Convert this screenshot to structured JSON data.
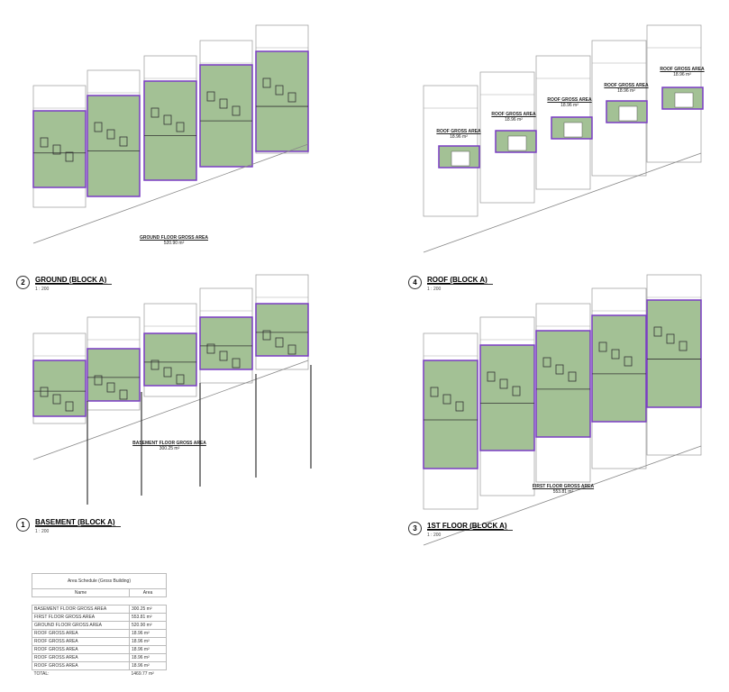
{
  "colors": {
    "floor_fill": "#a3c195",
    "area_outline": "#7a3cc4",
    "linework": "#555555"
  },
  "plans": [
    {
      "key": "ground",
      "number": "2",
      "title": "GROUND (BLOCK A)",
      "scale": "1 : 200",
      "area_label": "GROUND FLOOR GROSS AREA",
      "area_value": "520.90 m²"
    },
    {
      "key": "roof",
      "number": "4",
      "title": "ROOF (BLOCK A)",
      "scale": "1 : 200",
      "unit_label": "ROOF GROSS AREA",
      "unit_value": "18.96 m²"
    },
    {
      "key": "basement",
      "number": "1",
      "title": "BASEMENT  (BLOCK A)",
      "scale": "1 : 200",
      "area_label": "BASEMENT FLOOR GROSS AREA",
      "area_value": "300.25 m²"
    },
    {
      "key": "first",
      "number": "3",
      "title": "1ST FLOOR  (BLOCK A)",
      "scale": "1 : 200",
      "area_label": "FIRST FLOOR GROSS AREA",
      "area_value": "553.81 m²"
    }
  ],
  "schedule": {
    "title": "Area Schedule (Gross Building)",
    "headers": [
      "Name",
      "Area"
    ],
    "rows": [
      [
        "BASEMENT FLOOR GROSS AREA",
        "300.25 m²"
      ],
      [
        "FIRST FLOOR GROSS AREA",
        "553.81 m²"
      ],
      [
        "GROUND FLOOR GROSS AREA",
        "520.90 m²"
      ],
      [
        "ROOF GROSS AREA",
        "18.96 m²"
      ],
      [
        "ROOF GROSS AREA",
        "18.96 m²"
      ],
      [
        "ROOF GROSS AREA",
        "18.96 m²"
      ],
      [
        "ROOF GROSS AREA",
        "18.96 m²"
      ],
      [
        "ROOF GROSS AREA",
        "18.96 m²"
      ]
    ],
    "total": [
      "TOTAL:",
      "1469.77 m²"
    ]
  }
}
